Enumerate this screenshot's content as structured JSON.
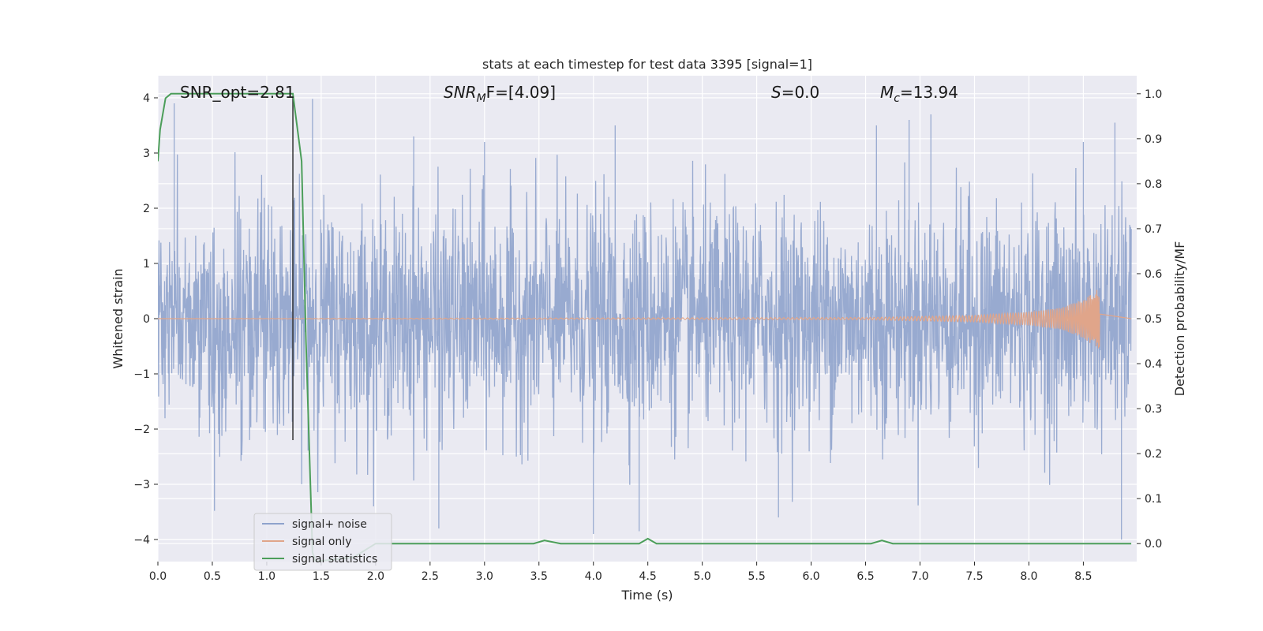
{
  "chart_data": {
    "type": "line",
    "title": "stats at each timestep for test data 3395 [signal=1]",
    "xlabel": "Time (s)",
    "ylabel": "Whitened strain",
    "y2label": "Detection probability/MF",
    "xlim": [
      0.0,
      8.99
    ],
    "ylim": [
      -4.4,
      4.4
    ],
    "y2lim": [
      -0.04,
      1.04
    ],
    "xticks": [
      "0.0",
      "0.5",
      "1.0",
      "1.5",
      "2.0",
      "2.5",
      "3.0",
      "3.5",
      "4.0",
      "4.5",
      "5.0",
      "5.5",
      "6.0",
      "6.5",
      "7.0",
      "7.5",
      "8.0",
      "8.5"
    ],
    "yticks": [
      "4",
      "3",
      "2",
      "1",
      "0",
      "−1",
      "−2",
      "−3",
      "−4"
    ],
    "y2ticks": [
      "1.0",
      "0.9",
      "0.8",
      "0.7",
      "0.6",
      "0.5",
      "0.4",
      "0.3",
      "0.2",
      "0.1",
      "0.0"
    ],
    "grid": true,
    "legend_position": "lower-left",
    "annotations": {
      "snr_opt": "SNR_opt=2.81",
      "snr_mf_base": "SNR",
      "snr_mf_sub": "M",
      "snr_mf_rest": "F=[4.09]",
      "s_sym": "S",
      "s_val": "=0.0",
      "mc_sym": "M",
      "mc_sub": "c",
      "mc_val": "=13.94"
    },
    "vertical_marker_x": 1.24,
    "series": [
      {
        "name": "signal+ noise",
        "color": "#8fa3cc",
        "axis": "left",
        "description_values": {
          "peaks": [
            [
              0.15,
              3.9
            ],
            [
              1.42,
              3.98
            ],
            [
              2.35,
              3.3
            ],
            [
              3.0,
              3.2
            ],
            [
              4.2,
              3.5
            ],
            [
              6.6,
              3.5
            ],
            [
              6.9,
              3.6
            ],
            [
              7.1,
              3.7
            ],
            [
              8.5,
              3.2
            ],
            [
              8.79,
              3.55
            ],
            [
              0.52,
              -3.48
            ],
            [
              2.58,
              -3.8
            ],
            [
              4.0,
              -3.9
            ],
            [
              4.42,
              -3.85
            ],
            [
              5.7,
              -3.6
            ],
            [
              8.85,
              -4.0
            ]
          ]
        }
      },
      {
        "name": "signal only",
        "color": "#e0a58a",
        "axis": "left",
        "envelope": {
          "x": [
            0.0,
            6.5,
            7.5,
            8.0,
            8.3,
            8.5,
            8.6,
            8.65
          ],
          "amp": [
            0.0,
            0.02,
            0.06,
            0.12,
            0.2,
            0.35,
            0.5,
            0.55
          ]
        }
      },
      {
        "name": "signal statistics",
        "color": "#4c9e5a",
        "axis": "right",
        "x": [
          0.0,
          0.02,
          0.07,
          0.12,
          0.2,
          1.0,
          1.24,
          1.32,
          1.36,
          1.42,
          1.45,
          1.8,
          2.0,
          3.45,
          3.55,
          3.7,
          4.42,
          4.5,
          4.58,
          6.55,
          6.65,
          6.75,
          8.94
        ],
        "values": [
          0.85,
          0.92,
          0.99,
          1.0,
          1.0,
          1.0,
          1.0,
          0.85,
          0.45,
          -0.02,
          -0.04,
          -0.03,
          0.0,
          0.0,
          0.007,
          0.0,
          0.0,
          0.011,
          0.0,
          0.0,
          0.007,
          0.0,
          0.0
        ]
      }
    ]
  }
}
